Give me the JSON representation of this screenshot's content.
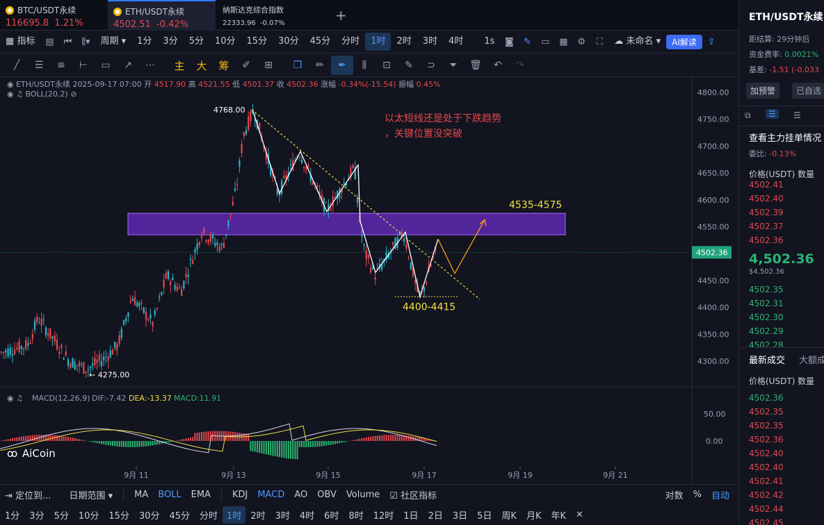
{
  "tabs": [
    {
      "name": "BTC/USDT永续",
      "price": "116695.8",
      "change": "1.21%"
    },
    {
      "name": "ETH/USDT永续",
      "price": "4502.51",
      "change": "-0.42%"
    },
    {
      "name": "纳斯达克综合指数",
      "price": "22333.96",
      "change": "-0.07%"
    }
  ],
  "toolbar": {
    "indicators": "指标",
    "period": "周期",
    "intervals": [
      "1分",
      "3分",
      "5分",
      "10分",
      "15分",
      "30分",
      "45分",
      "分时",
      "1时",
      "2时",
      "3时",
      "4时"
    ],
    "interval_selected": "1时",
    "second": "1s",
    "unnamed": "未命名",
    "ai": "AI解读"
  },
  "drawing_tools": {
    "main": "主",
    "big": "大",
    "chip": "筹"
  },
  "info_bar": {
    "symbol": "ETH/USDT永续",
    "datetime": "2025-09-17 07:00",
    "open_label": "开",
    "open": "4517.90",
    "high_label": "高",
    "high": "4521.55",
    "low_label": "低",
    "low": "4501.37",
    "close_label": "收",
    "close": "4502.36",
    "change_label": "涨幅",
    "change": "-0.34%(-15.54)",
    "amp_label": "振幅",
    "amp": "0.45%",
    "boll": "BOLL(20,2)"
  },
  "chart_data": {
    "type": "candlestick",
    "y_axis": [
      4800,
      4750,
      4700,
      4650,
      4600,
      4550,
      4450,
      4400,
      4350,
      4300
    ],
    "y_axis_labels": [
      "4800.00",
      "4750.00",
      "4700.00",
      "4650.00",
      "4600.00",
      "4550.00",
      "4450.00",
      "4400.00",
      "4350.00",
      "4300.00"
    ],
    "x_axis_labels": [
      "9月 11",
      "9月 13",
      "9月 15",
      "9月 17",
      "9月 19",
      "9月 21"
    ],
    "current_price": "4502.36",
    "high_marker": "4768.00",
    "low_marker": "← 4275.00",
    "zone_label": "4535-4575",
    "zone_range": [
      4535,
      4575
    ],
    "support_label": "4400-4415",
    "annotation_line1": "以太短线还是处于下跌趋势",
    "annotation_line2": "，关键位置没突破",
    "macd_label": "MACD(12,26,9)",
    "dif": "DIF:-7.42",
    "dea": "DEA:-13.37",
    "macd": "MACD:11.91",
    "macd_axis": [
      "50.00",
      "0.00"
    ]
  },
  "watermark": "AiCoin",
  "bottom_bar1": {
    "locate": "定位到...",
    "range": "日期范围",
    "items": [
      "MA",
      "BOLL",
      "EMA",
      "KDJ",
      "MACD",
      "AO",
      "OBV",
      "Volume"
    ],
    "community": "社区指标",
    "log": "对数",
    "pct": "%",
    "auto": "自动"
  },
  "bottom_bar2": {
    "items": [
      "1分",
      "3分",
      "5分",
      "10分",
      "15分",
      "30分",
      "45分",
      "分时",
      "1时",
      "2时",
      "3时",
      "4时",
      "6时",
      "8时",
      "12时",
      "1日",
      "2日",
      "3日",
      "5日",
      "周K",
      "月K",
      "年K"
    ],
    "selected": "1时"
  },
  "sidebar": {
    "title": "ETH/USDT永续",
    "settle": "距结算: 29分钟后",
    "funding_label": "资金费率:",
    "funding": "0.0021%",
    "basis_label": "基差:",
    "basis": "-1.51 (-0.033",
    "alert": "加预警",
    "fav": "已自选",
    "orderbook_title": "查看主力挂单情况",
    "ratio_label": "委比:",
    "ratio": "-0.13%",
    "price_head": "价格(USDT)",
    "qty_head": "数量",
    "asks": [
      "4502.41",
      "4502.40",
      "4502.39",
      "4502.37",
      "4502.36"
    ],
    "last_price": "4,502.36",
    "last_sub": "$4,502.36",
    "bids": [
      "4502.35",
      "4502.31",
      "4502.30",
      "4502.29",
      "4502.28"
    ],
    "trades_title": "最新成交",
    "big_title": "大额成",
    "trades": [
      "4502.36",
      "4502.35",
      "4502.35",
      "4502.36",
      "4502.40",
      "4502.40",
      "4502.41",
      "4502.42",
      "4502.44",
      "4502.45"
    ]
  },
  "colors": {
    "up": "#e5484d",
    "down": "#2bb673",
    "accent": "#4d9bff",
    "zone": "#7a2fd6"
  }
}
